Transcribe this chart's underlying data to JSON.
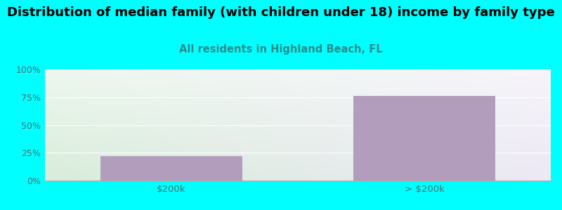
{
  "title": "Distribution of median family (with children under 18) income by family type",
  "subtitle": "All residents in Highland Beach, FL",
  "categories": [
    "$200k",
    "> $200k"
  ],
  "values": [
    22,
    76
  ],
  "bar_color": "#b39dbd",
  "background_color": "#00ffff",
  "plot_bg_gradient_left": "#d8edda",
  "plot_bg_gradient_right": "#ede8f5",
  "title_fontsize": 13,
  "subtitle_fontsize": 10.5,
  "subtitle_color": "#2d8b8b",
  "tick_label_color": "#4a7070",
  "ylim": [
    0,
    100
  ],
  "yticks": [
    0,
    25,
    50,
    75,
    100
  ],
  "ytick_labels": [
    "0%",
    "25%",
    "50%",
    "75%",
    "100%"
  ]
}
